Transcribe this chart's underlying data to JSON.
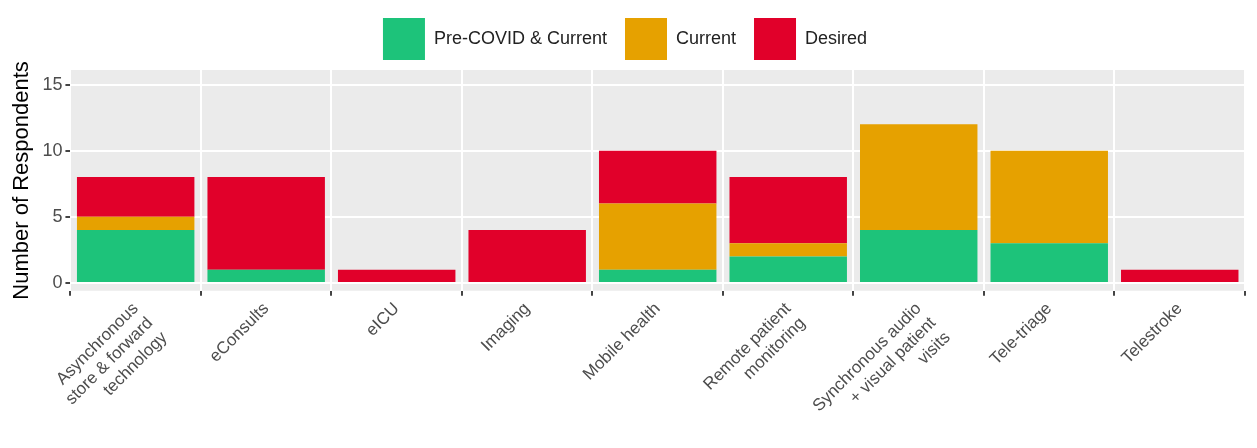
{
  "chart_data": {
    "type": "bar",
    "stacked": true,
    "ylabel": "Number of Respondents",
    "categories": [
      "Asynchronous\nstore & forward\ntechnology",
      "eConsults",
      "eICU",
      "Imaging",
      "Mobile health",
      "Remote patient\nmonitoring",
      "Synchronous audio\n+ visual patient\nvisits",
      "Tele-triage",
      "Telestroke"
    ],
    "series": [
      {
        "name": "Pre-COVID & Current",
        "color": "#1dc37a",
        "values": [
          4,
          1,
          0,
          0,
          1,
          2,
          4,
          3,
          0
        ]
      },
      {
        "name": "Current",
        "color": "#e6a100",
        "values": [
          1,
          0,
          0,
          0,
          5,
          1,
          8,
          7,
          0
        ]
      },
      {
        "name": "Desired",
        "color": "#e1002a",
        "values": [
          3,
          7,
          1,
          4,
          4,
          5,
          0,
          0,
          1
        ]
      }
    ],
    "ylim": [
      -0.6,
      16.1
    ],
    "yticks": [
      0,
      5,
      10,
      15
    ],
    "grid": true,
    "legend": "top"
  }
}
